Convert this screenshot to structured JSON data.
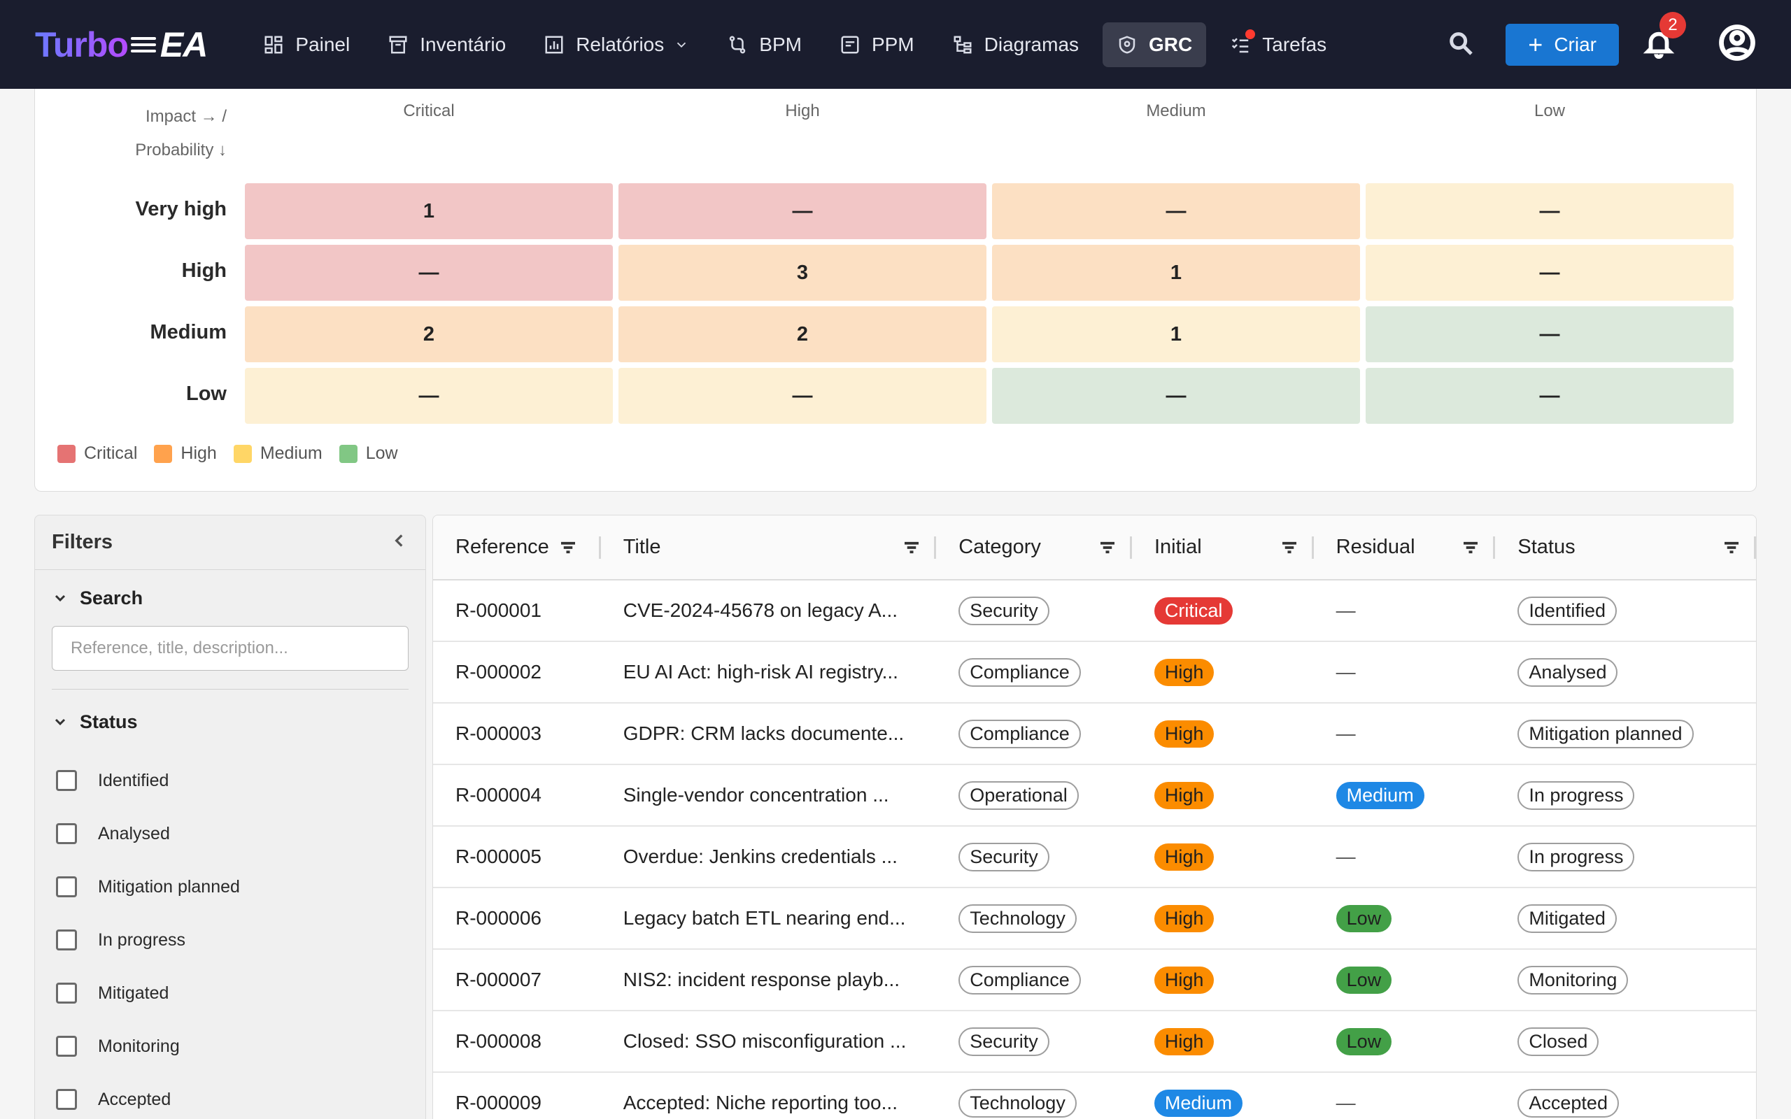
{
  "nav": {
    "logo_turbo": "Turbo",
    "logo_ea": "EA",
    "items": [
      {
        "label": "Painel",
        "icon": "dashboard-icon"
      },
      {
        "label": "Inventário",
        "icon": "archive-icon"
      },
      {
        "label": "Relatórios",
        "icon": "report-icon"
      },
      {
        "label": "BPM",
        "icon": "bpm-icon"
      },
      {
        "label": "PPM",
        "icon": "ppm-icon"
      },
      {
        "label": "Diagramas",
        "icon": "diagram-icon"
      },
      {
        "label": "GRC",
        "icon": "shield-icon"
      },
      {
        "label": "Tarefas",
        "icon": "tasks-icon"
      }
    ],
    "create_label": "Criar",
    "notification_count": "2"
  },
  "heatmap": {
    "axis_impact": "Impact → /",
    "axis_probability": "Probability ↓",
    "columns": [
      "Critical",
      "High",
      "Medium",
      "Low"
    ],
    "rows": [
      {
        "label": "Very high",
        "cells": [
          "1",
          "—",
          "—",
          "—"
        ],
        "levels": [
          "crit",
          "crit",
          "high",
          "med"
        ]
      },
      {
        "label": "High",
        "cells": [
          "—",
          "3",
          "1",
          "—"
        ],
        "levels": [
          "crit",
          "high",
          "high",
          "med"
        ]
      },
      {
        "label": "Medium",
        "cells": [
          "2",
          "2",
          "1",
          "—"
        ],
        "levels": [
          "high",
          "high",
          "med",
          "low"
        ]
      },
      {
        "label": "Low",
        "cells": [
          "—",
          "—",
          "—",
          "—"
        ],
        "levels": [
          "med",
          "med",
          "low",
          "low"
        ]
      }
    ],
    "legend": [
      {
        "label": "Critical",
        "color": "#e57373"
      },
      {
        "label": "High",
        "color": "#ffa24d"
      },
      {
        "label": "Medium",
        "color": "#ffd666"
      },
      {
        "label": "Low",
        "color": "#81c784"
      }
    ]
  },
  "filters": {
    "title": "Filters",
    "search_section": "Search",
    "search_placeholder": "Reference, title, description...",
    "status_section": "Status",
    "status_options": [
      "Identified",
      "Analysed",
      "Mitigation planned",
      "In progress",
      "Mitigated",
      "Monitoring",
      "Accepted"
    ]
  },
  "table": {
    "headers": {
      "reference": "Reference",
      "title": "Title",
      "category": "Category",
      "initial": "Initial",
      "residual": "Residual",
      "status": "Status"
    },
    "rows": [
      {
        "reference": "R-000001",
        "title": "CVE-2024-45678 on legacy A...",
        "category": "Security",
        "initial": "Critical",
        "residual": "—",
        "status": "Identified"
      },
      {
        "reference": "R-000002",
        "title": "EU AI Act: high-risk AI registry...",
        "category": "Compliance",
        "initial": "High",
        "residual": "—",
        "status": "Analysed"
      },
      {
        "reference": "R-000003",
        "title": "GDPR: CRM lacks documente...",
        "category": "Compliance",
        "initial": "High",
        "residual": "—",
        "status": "Mitigation planned"
      },
      {
        "reference": "R-000004",
        "title": "Single-vendor concentration ...",
        "category": "Operational",
        "initial": "High",
        "residual": "Medium",
        "status": "In progress"
      },
      {
        "reference": "R-000005",
        "title": "Overdue: Jenkins credentials ...",
        "category": "Security",
        "initial": "High",
        "residual": "—",
        "status": "In progress"
      },
      {
        "reference": "R-000006",
        "title": "Legacy batch ETL nearing end...",
        "category": "Technology",
        "initial": "High",
        "residual": "Low",
        "status": "Mitigated"
      },
      {
        "reference": "R-000007",
        "title": "NIS2: incident response playb...",
        "category": "Compliance",
        "initial": "High",
        "residual": "Low",
        "status": "Monitoring"
      },
      {
        "reference": "R-000008",
        "title": "Closed: SSO misconfiguration ...",
        "category": "Security",
        "initial": "High",
        "residual": "Low",
        "status": "Closed"
      },
      {
        "reference": "R-000009",
        "title": "Accepted: Niche reporting too...",
        "category": "Technology",
        "initial": "Medium",
        "residual": "—",
        "status": "Accepted"
      }
    ]
  }
}
